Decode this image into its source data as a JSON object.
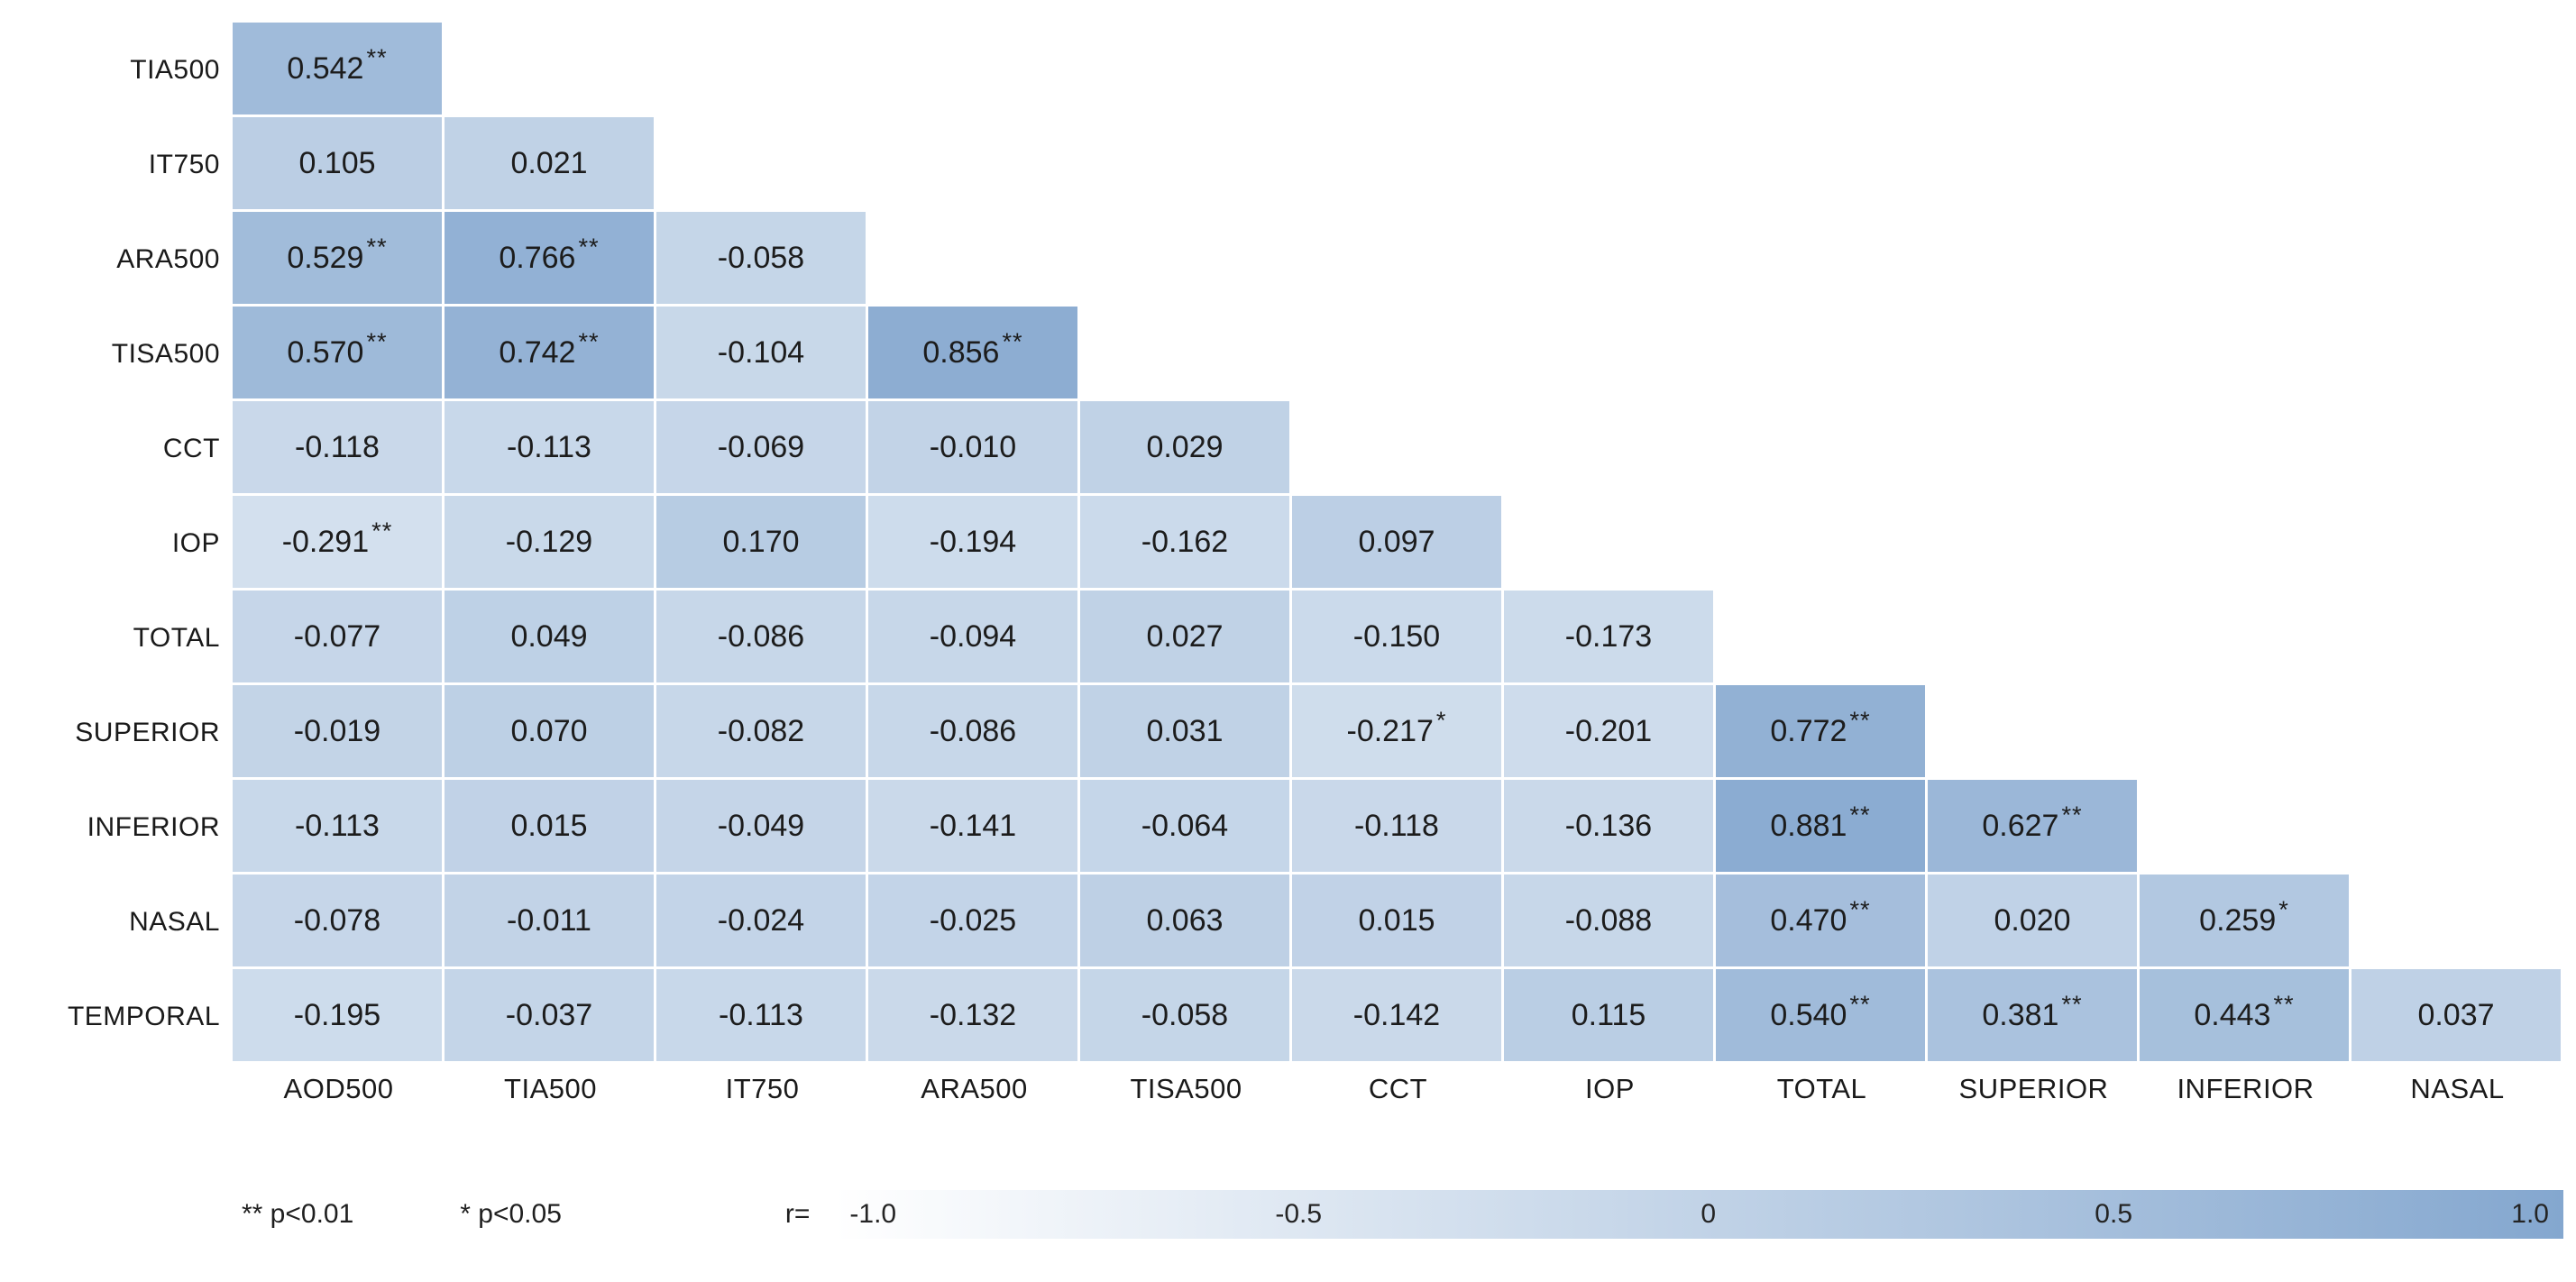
{
  "chart_data": {
    "type": "heatmap",
    "subtype": "lower-triangular-correlation-matrix",
    "title": "",
    "row_labels": [
      "TIA500",
      "IT750",
      "ARA500",
      "TISA500",
      "CCT",
      "IOP",
      "TOTAL",
      "SUPERIOR",
      "INFERIOR",
      "NASAL",
      "TEMPORAL"
    ],
    "col_labels": [
      "AOD500",
      "TIA500",
      "IT750",
      "ARA500",
      "TISA500",
      "CCT",
      "IOP",
      "TOTAL",
      "SUPERIOR",
      "INFERIOR",
      "NASAL"
    ],
    "value_range": [
      -1.0,
      1.0
    ],
    "cells": [
      [
        {
          "d": "0.542",
          "s": "**",
          "v": 0.542
        }
      ],
      [
        {
          "d": "0.105",
          "s": "",
          "v": 0.105
        },
        {
          "d": "0.021",
          "s": "",
          "v": 0.021
        }
      ],
      [
        {
          "d": "0.529",
          "s": "**",
          "v": 0.529
        },
        {
          "d": "0.766",
          "s": "**",
          "v": 0.766
        },
        {
          "d": "-0.058",
          "s": "",
          "v": -0.058
        }
      ],
      [
        {
          "d": "0.570",
          "s": "**",
          "v": 0.57
        },
        {
          "d": "0.742",
          "s": "**",
          "v": 0.742
        },
        {
          "d": "-0.104",
          "s": "",
          "v": -0.104
        },
        {
          "d": "0.856",
          "s": "**",
          "v": 0.856
        }
      ],
      [
        {
          "d": "-0.118",
          "s": "",
          "v": -0.118
        },
        {
          "d": "-0.113",
          "s": "",
          "v": -0.113
        },
        {
          "d": "-0.069",
          "s": "",
          "v": -0.069
        },
        {
          "d": "-0.010",
          "s": "",
          "v": -0.01
        },
        {
          "d": "0.029",
          "s": "",
          "v": 0.029
        }
      ],
      [
        {
          "d": "-0.291",
          "s": "**",
          "v": -0.291
        },
        {
          "d": "-0.129",
          "s": "",
          "v": -0.129
        },
        {
          "d": "0.170",
          "s": "",
          "v": 0.17
        },
        {
          "d": "-0.194",
          "s": "",
          "v": -0.194
        },
        {
          "d": "-0.162",
          "s": "",
          "v": -0.162
        },
        {
          "d": "0.097",
          "s": "",
          "v": 0.097
        }
      ],
      [
        {
          "d": "-0.077",
          "s": "",
          "v": -0.077
        },
        {
          "d": "0.049",
          "s": "",
          "v": 0.049
        },
        {
          "d": "-0.086",
          "s": "",
          "v": -0.086
        },
        {
          "d": "-0.094",
          "s": "",
          "v": -0.094
        },
        {
          "d": "0.027",
          "s": "",
          "v": 0.027
        },
        {
          "d": "-0.150",
          "s": "",
          "v": -0.15
        },
        {
          "d": "-0.173",
          "s": "",
          "v": -0.173
        }
      ],
      [
        {
          "d": "-0.019",
          "s": "",
          "v": -0.019
        },
        {
          "d": "0.070",
          "s": "",
          "v": 0.07
        },
        {
          "d": "-0.082",
          "s": "",
          "v": -0.082
        },
        {
          "d": "-0.086",
          "s": "",
          "v": -0.086
        },
        {
          "d": "0.031",
          "s": "",
          "v": 0.031
        },
        {
          "d": "-0.217",
          "s": "*",
          "v": -0.217
        },
        {
          "d": "-0.201",
          "s": "",
          "v": -0.201
        },
        {
          "d": "0.772",
          "s": "**",
          "v": 0.772
        }
      ],
      [
        {
          "d": "-0.113",
          "s": "",
          "v": -0.113
        },
        {
          "d": "0.015",
          "s": "",
          "v": 0.015
        },
        {
          "d": "-0.049",
          "s": "",
          "v": -0.049
        },
        {
          "d": "-0.141",
          "s": "",
          "v": -0.141
        },
        {
          "d": "-0.064",
          "s": "",
          "v": -0.064
        },
        {
          "d": "-0.118",
          "s": "",
          "v": -0.118
        },
        {
          "d": "-0.136",
          "s": "",
          "v": -0.136
        },
        {
          "d": "0.881",
          "s": "**",
          "v": 0.881
        },
        {
          "d": "0.627",
          "s": "**",
          "v": 0.627
        }
      ],
      [
        {
          "d": "-0.078",
          "s": "",
          "v": -0.078
        },
        {
          "d": "-0.011",
          "s": "",
          "v": -0.011
        },
        {
          "d": "-0.024",
          "s": "",
          "v": -0.024
        },
        {
          "d": "-0.025",
          "s": "",
          "v": -0.025
        },
        {
          "d": "0.063",
          "s": "",
          "v": 0.063
        },
        {
          "d": "0.015",
          "s": "",
          "v": 0.015
        },
        {
          "d": "-0.088",
          "s": "",
          "v": -0.088
        },
        {
          "d": "0.470",
          "s": "**",
          "v": 0.47
        },
        {
          "d": "0.020",
          "s": "",
          "v": 0.02
        },
        {
          "d": "0.259",
          "s": "*",
          "v": 0.259
        }
      ],
      [
        {
          "d": "-0.195",
          "s": "",
          "v": -0.195
        },
        {
          "d": "-0.037",
          "s": "",
          "v": -0.037
        },
        {
          "d": "-0.113",
          "s": "",
          "v": -0.113
        },
        {
          "d": "-0.132",
          "s": "",
          "v": -0.132
        },
        {
          "d": "-0.058",
          "s": "",
          "v": -0.058
        },
        {
          "d": "-0.142",
          "s": "",
          "v": -0.142
        },
        {
          "d": "0.115",
          "s": "",
          "v": 0.115
        },
        {
          "d": "0.540",
          "s": "**",
          "v": 0.54
        },
        {
          "d": "0.381",
          "s": "**",
          "v": 0.381
        },
        {
          "d": "0.443",
          "s": "**",
          "v": 0.443
        },
        {
          "d": "0.037",
          "s": "",
          "v": 0.037
        }
      ]
    ],
    "colorscale": {
      "r_min_color": "#ffffff",
      "r_max_color": "#84a7cf"
    },
    "legend_position": "bottom",
    "grid": false
  },
  "legend": {
    "p01": "** p<0.01",
    "p05": "* p<0.05",
    "r_label": "r=",
    "scale_ticks": [
      "-1.0",
      "-0.5",
      "0",
      "0.5",
      "1.0"
    ]
  },
  "colors": {
    "cell_text": "#1c1c1c",
    "label_text": "#1a1a1a",
    "background": "#ffffff"
  }
}
